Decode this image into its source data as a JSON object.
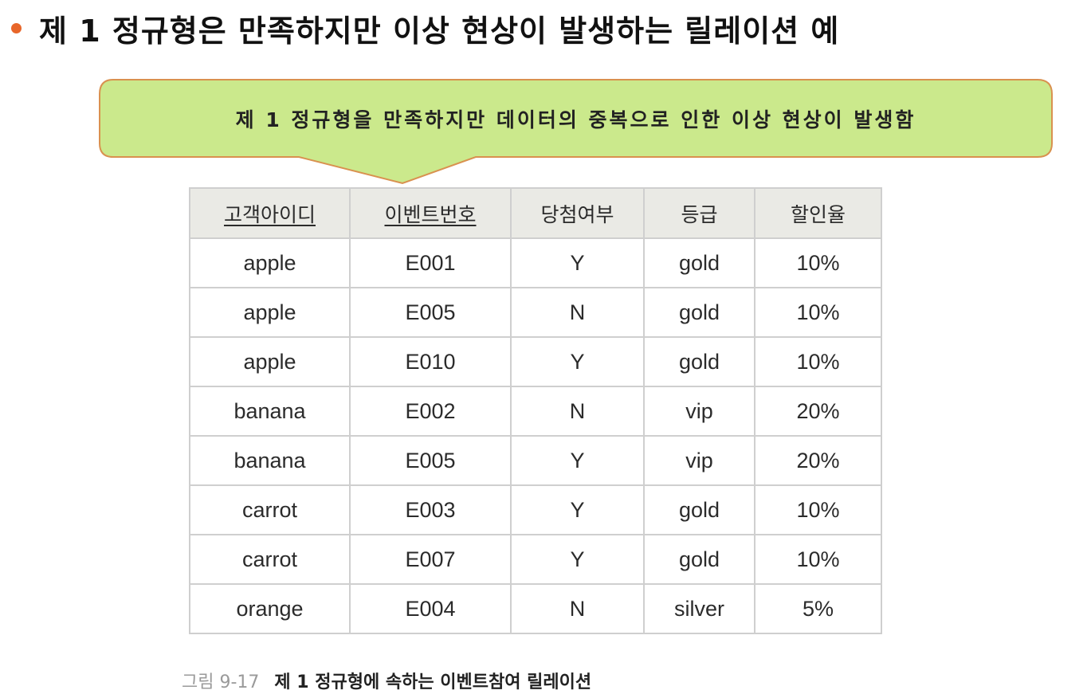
{
  "title": "제 1 정규형은 만족하지만 이상 현상이 발생하는 릴레이션 예",
  "callout": "제 1 정규형을 만족하지만 데이터의 중복으로 인한 이상 현상이 발생함",
  "colors": {
    "bullet": "#e8662a",
    "callout_fill": "#cbe98c",
    "callout_border": "#d9914f",
    "header_bg": "#eaeae5",
    "grid": "#cfcfcf"
  },
  "table": {
    "headers": [
      "고객아이디",
      "이벤트번호",
      "당첨여부",
      "등급",
      "할인율"
    ],
    "key_columns": [
      "고객아이디",
      "이벤트번호"
    ],
    "rows": [
      [
        "apple",
        "E001",
        "Y",
        "gold",
        "10%"
      ],
      [
        "apple",
        "E005",
        "N",
        "gold",
        "10%"
      ],
      [
        "apple",
        "E010",
        "Y",
        "gold",
        "10%"
      ],
      [
        "banana",
        "E002",
        "N",
        "vip",
        "20%"
      ],
      [
        "banana",
        "E005",
        "Y",
        "vip",
        "20%"
      ],
      [
        "carrot",
        "E003",
        "Y",
        "gold",
        "10%"
      ],
      [
        "carrot",
        "E007",
        "Y",
        "gold",
        "10%"
      ],
      [
        "orange",
        "E004",
        "N",
        "silver",
        "5%"
      ]
    ]
  },
  "caption": {
    "label": "그림 9-17",
    "text": "제 1 정규형에 속하는 이벤트참여 릴레이션"
  }
}
